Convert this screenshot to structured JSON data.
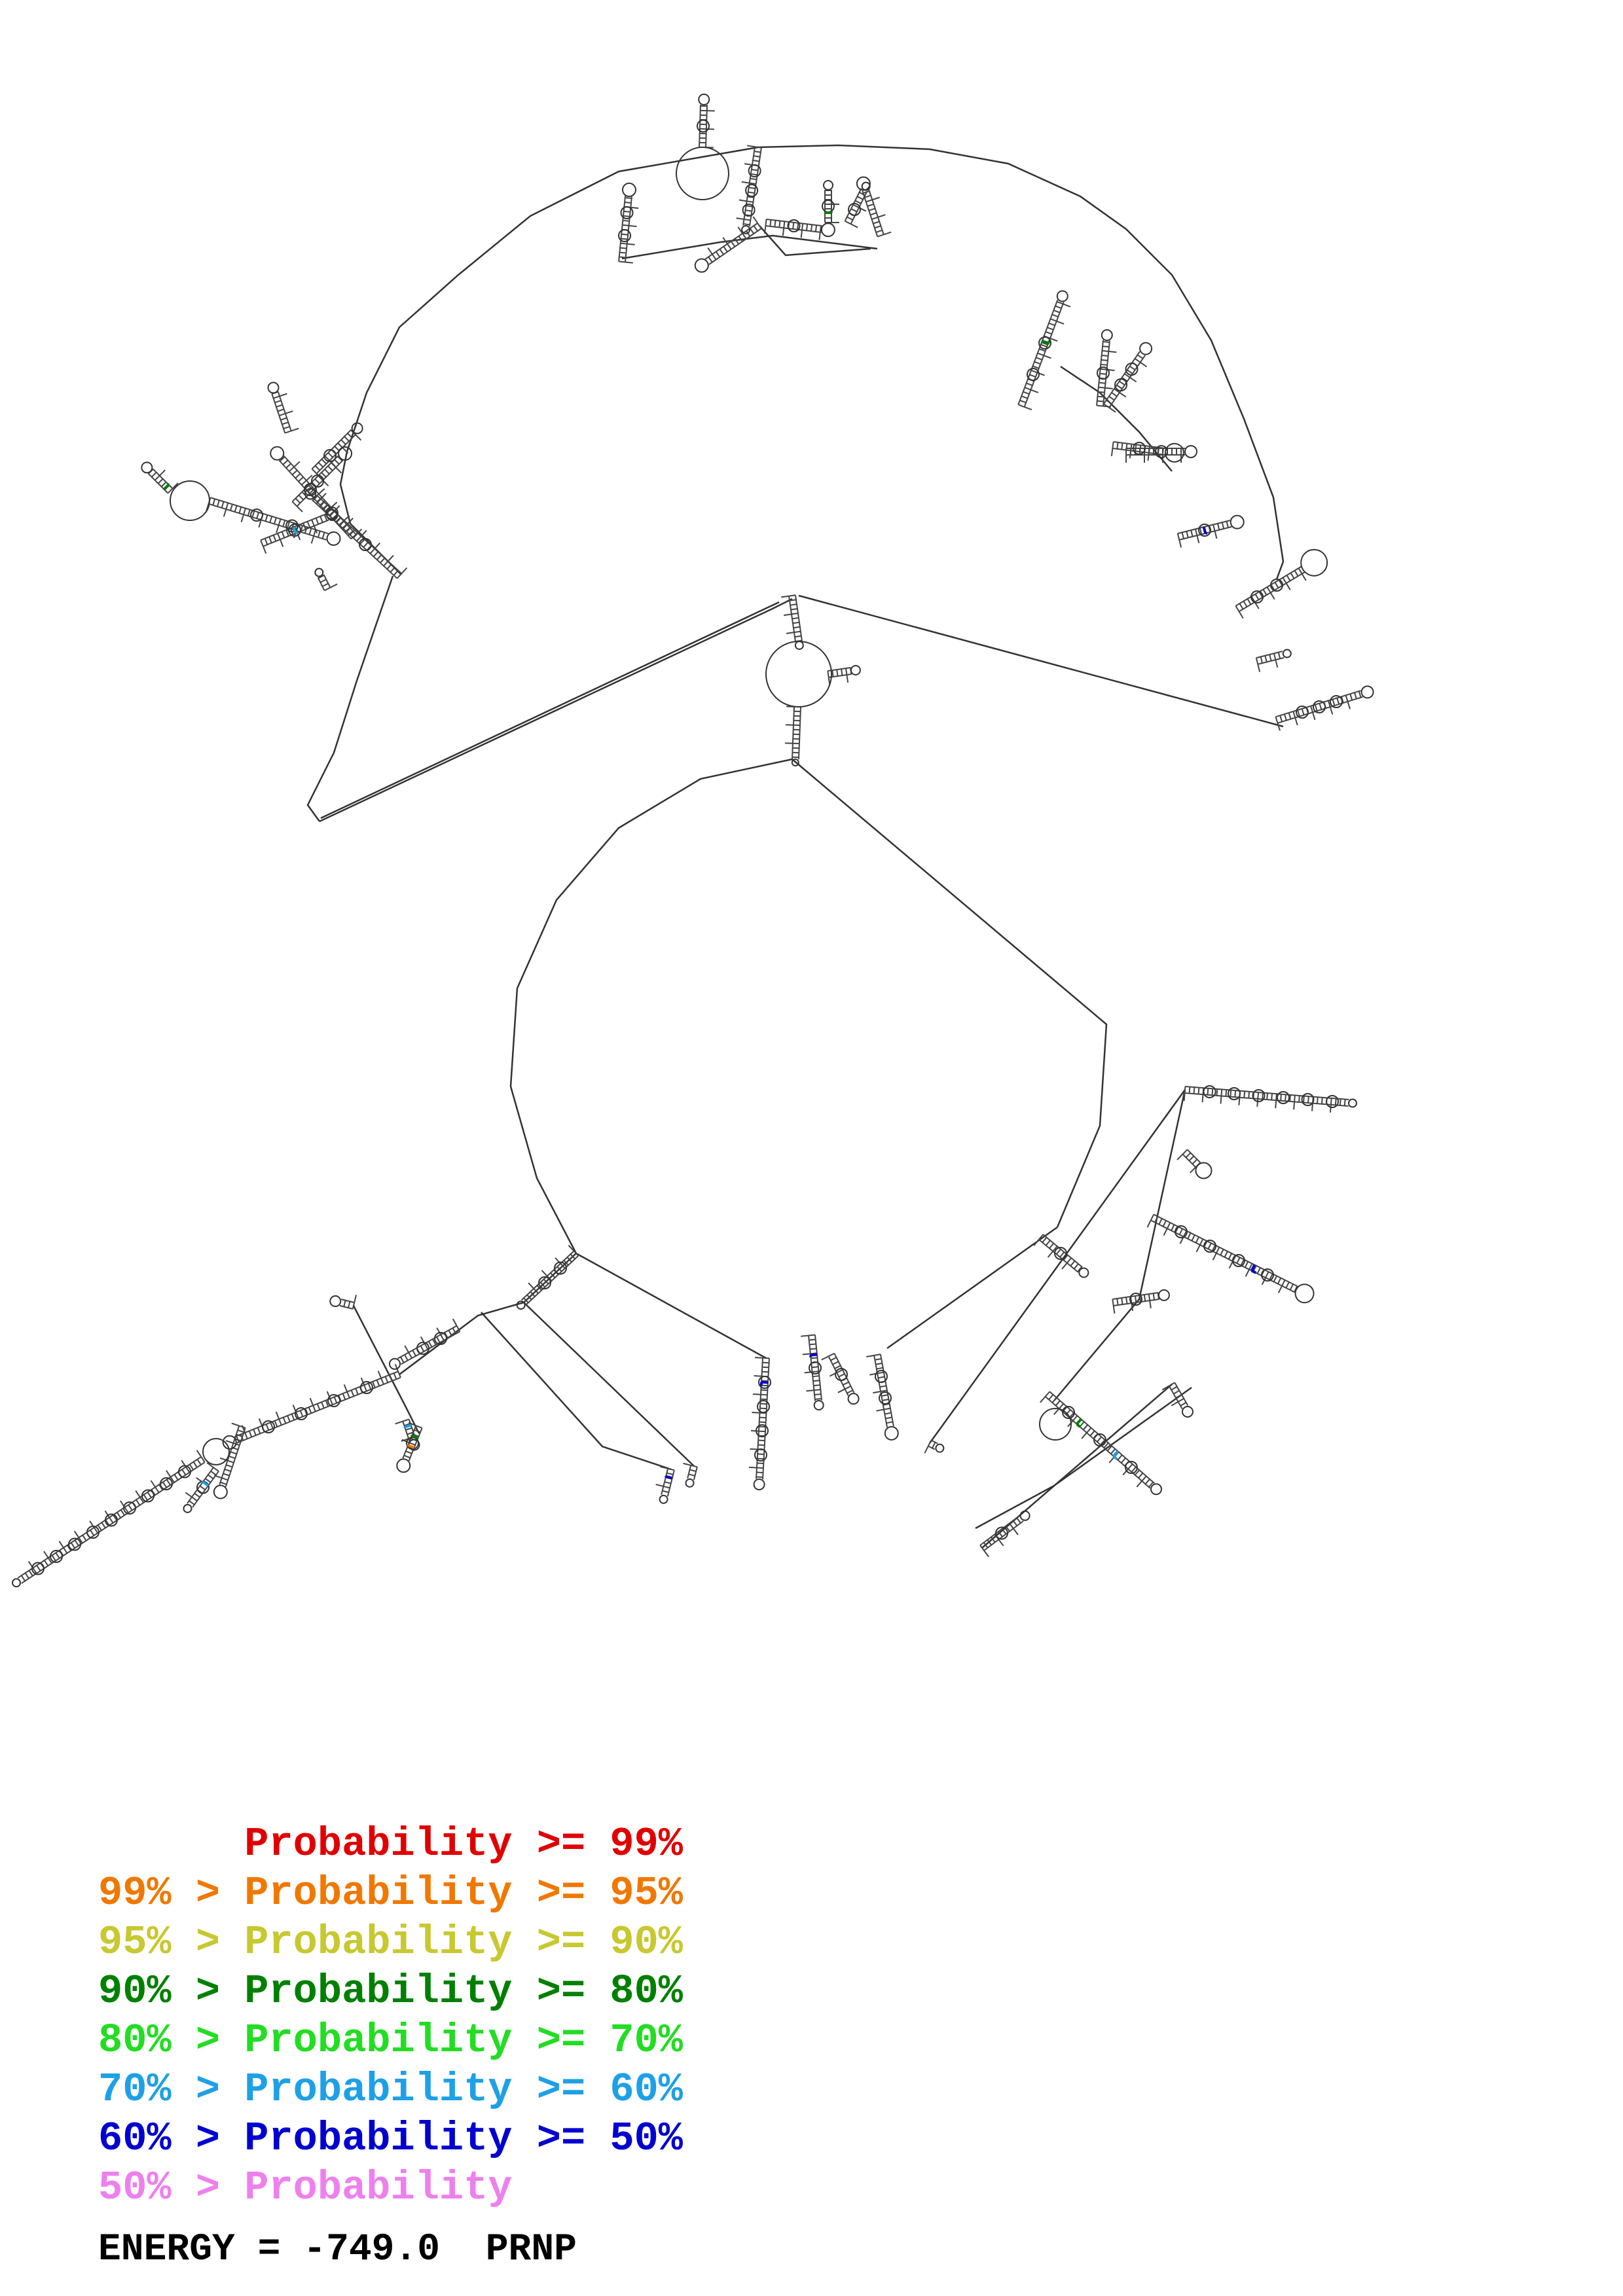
{
  "diagram": {
    "name": "PRNP",
    "line_color": "#333333",
    "base_color": "#444444"
  },
  "legend": [
    {
      "prefix": "",
      "mid": "Probability",
      "suffix": ">= 99%",
      "color": "#e00000"
    },
    {
      "prefix": "99% >",
      "mid": "Probability",
      "suffix": ">= 95%",
      "color": "#f07800"
    },
    {
      "prefix": "95% >",
      "mid": "Probability",
      "suffix": ">= 90%",
      "color": "#c8c830"
    },
    {
      "prefix": "90% >",
      "mid": "Probability",
      "suffix": ">= 80%",
      "color": "#008000"
    },
    {
      "prefix": "80% >",
      "mid": "Probability",
      "suffix": ">= 70%",
      "color": "#22dd22"
    },
    {
      "prefix": "70% >",
      "mid": "Probability",
      "suffix": ">= 60%",
      "color": "#1ea0e6"
    },
    {
      "prefix": "60% >",
      "mid": "Probability",
      "suffix": ">= 50%",
      "color": "#0000d0"
    },
    {
      "prefix": "50% >",
      "mid": "Probability",
      "suffix": "",
      "color": "#ee80ee"
    }
  ],
  "energy": {
    "label": "ENERGY =",
    "value": "-749.0",
    "gene": "PRNP"
  }
}
